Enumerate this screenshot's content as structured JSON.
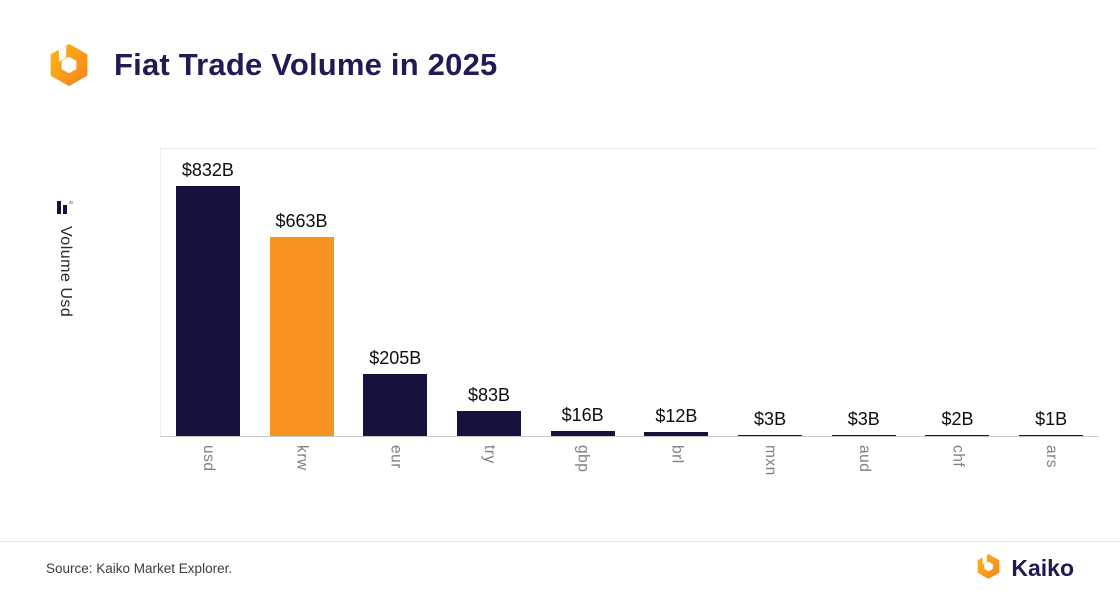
{
  "header": {
    "title": "Fiat Trade Volume in 2025"
  },
  "icons": {
    "header_logo": "kaiko-hex-logo",
    "y_axis_icon": "mini-bar-chart",
    "footer_logo": "kaiko-hex-logo"
  },
  "chart_data": {
    "type": "bar",
    "title": "Fiat Trade Volume in 2025",
    "ylabel": "Volume Usd",
    "categories": [
      "usd",
      "krw",
      "eur",
      "try",
      "gbp",
      "brl",
      "mxn",
      "aud",
      "chf",
      "ars"
    ],
    "values": [
      832,
      663,
      205,
      83,
      16,
      12,
      3,
      3,
      2,
      1
    ],
    "value_labels": [
      "$832B",
      "$663B",
      "$205B",
      "$83B",
      "$16B",
      "$12B",
      "$3B",
      "$3B",
      "$2B",
      "$1B"
    ],
    "ylim": [
      0,
      850
    ],
    "grid": false,
    "legend": "none",
    "bar_color_default": "#15123E",
    "bar_color_highlight": "#F79421",
    "highlight_category": "krw"
  },
  "footer": {
    "source": "Source: Kaiko Market Explorer.",
    "brand": "Kaiko"
  }
}
